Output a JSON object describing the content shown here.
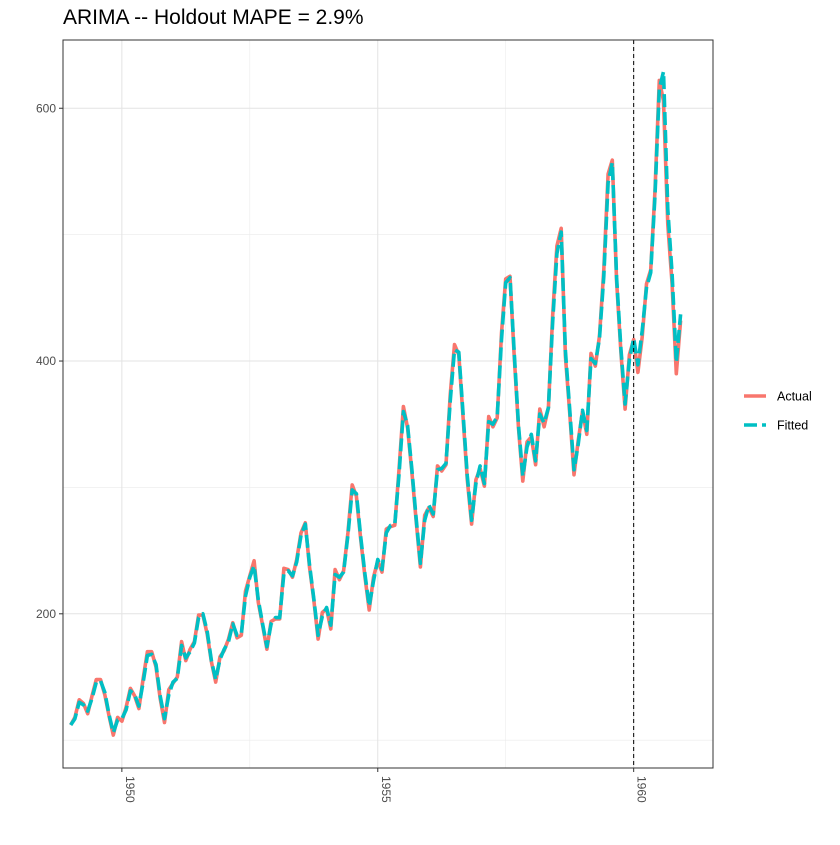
{
  "chart_data": {
    "type": "line",
    "title": "ARIMA -- Holdout MAPE = 2.9%",
    "xlabel": "",
    "ylabel": "",
    "xlim": [
      1948.85,
      1961.55
    ],
    "ylim": [
      78,
      654
    ],
    "grid": true,
    "legend_position": "right",
    "x_ticks": [
      1950,
      1955,
      1960
    ],
    "x_tick_labels": [
      "1950",
      "1955",
      "1960"
    ],
    "y_ticks": [
      200,
      400,
      600
    ],
    "y_tick_labels": [
      "200",
      "400",
      "600"
    ],
    "holdout_start": 1960.0,
    "colors": {
      "Actual": "#F8766D",
      "Fitted": "#00BFC4"
    },
    "x_start": 1949.0,
    "x_step": 0.0833333,
    "series": [
      {
        "name": "Actual",
        "style": "solid",
        "values": [
          112,
          118,
          132,
          129,
          121,
          135,
          148,
          148,
          136,
          119,
          104,
          118,
          115,
          126,
          141,
          135,
          125,
          149,
          170,
          170,
          158,
          133,
          114,
          140,
          145,
          150,
          178,
          163,
          172,
          178,
          199,
          199,
          184,
          162,
          146,
          166,
          171,
          180,
          193,
          181,
          183,
          218,
          230,
          242,
          209,
          191,
          172,
          194,
          196,
          196,
          236,
          235,
          229,
          243,
          264,
          272,
          237,
          211,
          180,
          201,
          204,
          188,
          235,
          227,
          234,
          264,
          302,
          293,
          259,
          229,
          203,
          229,
          242,
          233,
          267,
          269,
          270,
          315,
          364,
          347,
          312,
          274,
          237,
          278,
          284,
          277,
          317,
          313,
          318,
          374,
          413,
          405,
          355,
          306,
          271,
          306,
          315,
          301,
          356,
          348,
          355,
          422,
          465,
          467,
          404,
          347,
          305,
          336,
          340,
          318,
          362,
          348,
          363,
          435,
          491,
          505,
          404,
          359,
          310,
          337,
          360,
          342,
          406,
          396,
          420,
          472,
          548,
          559,
          463,
          407,
          362,
          405,
          417,
          391,
          419,
          461,
          472,
          535,
          622,
          606,
          508,
          461,
          390,
          432
        ]
      },
      {
        "name": "Fitted",
        "style": "dashed",
        "values": [
          112,
          117,
          130,
          128,
          123,
          133,
          146,
          147,
          138,
          120,
          106,
          116,
          117,
          124,
          139,
          136,
          127,
          146,
          167,
          168,
          160,
          135,
          117,
          136,
          146,
          149,
          175,
          165,
          170,
          177,
          197,
          200,
          186,
          163,
          148,
          164,
          172,
          178,
          192,
          183,
          184,
          214,
          229,
          238,
          211,
          192,
          174,
          192,
          197,
          197,
          232,
          234,
          230,
          241,
          262,
          271,
          239,
          212,
          183,
          198,
          205,
          191,
          231,
          229,
          233,
          262,
          298,
          295,
          261,
          231,
          206,
          226,
          243,
          235,
          264,
          270,
          271,
          311,
          360,
          349,
          314,
          276,
          240,
          274,
          286,
          279,
          314,
          315,
          319,
          369,
          409,
          407,
          358,
          309,
          274,
          303,
          317,
          303,
          352,
          350,
          356,
          417,
          462,
          466,
          407,
          349,
          309,
          332,
          342,
          321,
          358,
          351,
          363,
          430,
          485,
          502,
          408,
          362,
          314,
          334,
          361,
          345,
          402,
          398,
          418,
          467,
          541,
          557,
          466,
          410,
          366,
          401,
          418,
          397,
          424,
          458,
          470,
          531,
          615,
          629,
          520,
          469,
          399,
          437
        ]
      }
    ]
  }
}
